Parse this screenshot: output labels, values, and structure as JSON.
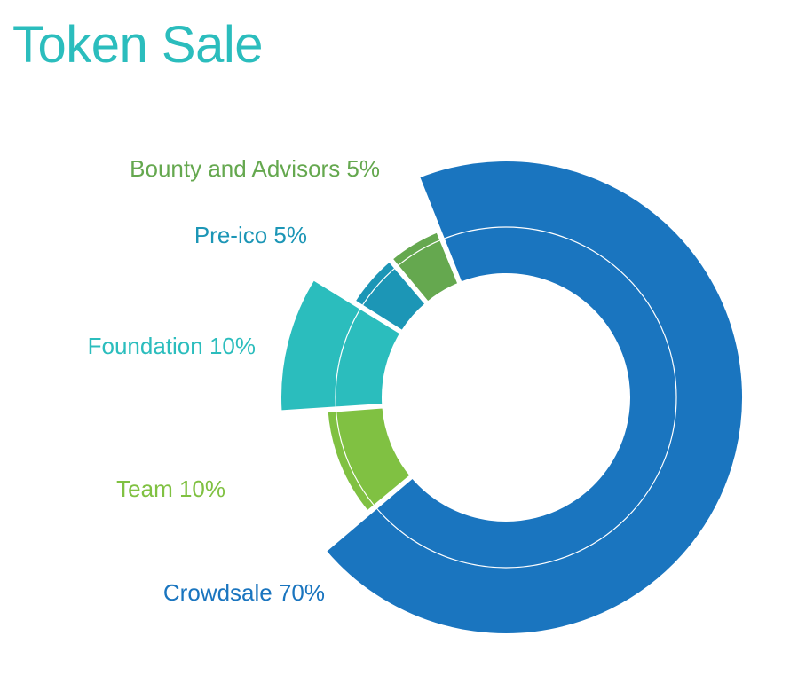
{
  "page": {
    "title": "Token Sale",
    "title_color": "#2bbdbd"
  },
  "chart_data": {
    "type": "pie",
    "variant": "donut",
    "title": "Token Sale",
    "slices": [
      {
        "label": "Crowdsale 70%",
        "value": 70,
        "color": "#1a75bf"
      },
      {
        "label": "Team 10%",
        "value": 10,
        "color": "#80c142"
      },
      {
        "label": "Foundation 10%",
        "value": 10,
        "color": "#2bbdbd"
      },
      {
        "label": "Pre-ico 5%",
        "value": 5,
        "color": "#1c96b6"
      },
      {
        "label": "Bounty and Advisors 5%",
        "value": 5,
        "color": "#65a84f"
      }
    ],
    "legend_placement": "left"
  }
}
